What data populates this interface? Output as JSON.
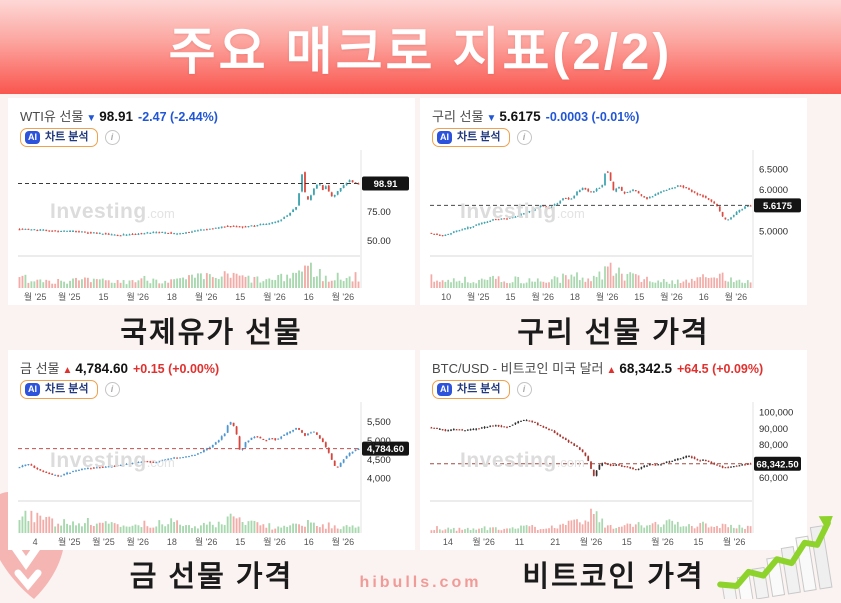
{
  "page": {
    "title": "주요 매크로 지표(2/2)",
    "footer": "hibulls.com"
  },
  "ui": {
    "info_symbol": "i"
  },
  "watermark": {
    "brand": "Investing",
    "suffix": ".com"
  },
  "cards": [
    {
      "key": "wti",
      "name": "WTI유 선물",
      "arrow": "▼",
      "dir": "down",
      "price": "98.91",
      "change": "-2.47 (-2.44%)",
      "ai_badge": "AI",
      "ai_label": "차트 분석",
      "caption": "국제유가 선물"
    },
    {
      "key": "copper",
      "name": "구리 선물",
      "arrow": "▼",
      "dir": "down",
      "price": "5.6175",
      "change": "-0.0003 (-0.01%)",
      "ai_badge": "AI",
      "ai_label": "차트 분석",
      "caption": "구리 선물 가격"
    },
    {
      "key": "gold",
      "name": "금 선물",
      "arrow": "▲",
      "dir": "up",
      "price": "4,784.60",
      "change": "+0.15 (+0.00%)",
      "ai_badge": "AI",
      "ai_label": "차트 분석",
      "caption": "금 선물 가격"
    },
    {
      "key": "btc",
      "name": "BTC/USD - 비트코인 미국 달러",
      "arrow": "▲",
      "dir": "up",
      "price": "68,342.5",
      "change": "+64.5 (+0.09%)",
      "ai_badge": "AI",
      "ai_label": "차트 분석",
      "caption": "비트코인 가격"
    }
  ],
  "chart_data": [
    {
      "type": "candlestick",
      "title": "WTI유 선물",
      "current_price": 98.91,
      "price_label": "98.91",
      "ylim": [
        40,
        126
      ],
      "y_ticks": [
        {
          "v": 75,
          "label": "75.00"
        },
        {
          "v": 50,
          "label": "50.00"
        }
      ],
      "x_labels": [
        "월 '25",
        "월 '25",
        "15",
        "월 '26",
        "18",
        "월 '26",
        "15",
        "월 '26",
        "16",
        "월 '26"
      ],
      "price_path": [
        [
          0,
          60
        ],
        [
          0.06,
          59
        ],
        [
          0.12,
          58
        ],
        [
          0.18,
          57.5
        ],
        [
          0.24,
          56
        ],
        [
          0.3,
          54.5
        ],
        [
          0.36,
          56
        ],
        [
          0.42,
          57
        ],
        [
          0.47,
          55.5
        ],
        [
          0.52,
          58
        ],
        [
          0.57,
          60
        ],
        [
          0.62,
          62.5
        ],
        [
          0.66,
          61.5
        ],
        [
          0.7,
          63
        ],
        [
          0.74,
          64.5
        ],
        [
          0.77,
          67
        ],
        [
          0.8,
          73
        ],
        [
          0.82,
          79
        ],
        [
          0.833,
          97
        ],
        [
          0.84,
          113
        ],
        [
          0.847,
          88
        ],
        [
          0.858,
          84
        ],
        [
          0.868,
          92
        ],
        [
          0.878,
          97
        ],
        [
          0.888,
          99
        ],
        [
          0.898,
          93
        ],
        [
          0.908,
          97
        ],
        [
          0.918,
          91
        ],
        [
          0.928,
          87
        ],
        [
          0.94,
          92
        ],
        [
          0.952,
          95
        ],
        [
          0.964,
          98
        ],
        [
          0.976,
          102
        ],
        [
          0.988,
          100
        ],
        [
          1,
          98.9
        ]
      ],
      "volume_path": [
        [
          0,
          0.5
        ],
        [
          0.1,
          0.4
        ],
        [
          0.2,
          0.35
        ],
        [
          0.3,
          0.3
        ],
        [
          0.38,
          0.45
        ],
        [
          0.46,
          0.35
        ],
        [
          0.52,
          0.5
        ],
        [
          0.58,
          0.55
        ],
        [
          0.63,
          0.6
        ],
        [
          0.68,
          0.45
        ],
        [
          0.73,
          0.35
        ],
        [
          0.78,
          0.5
        ],
        [
          0.82,
          0.8
        ],
        [
          0.85,
          1.0
        ],
        [
          0.875,
          0.85
        ],
        [
          0.9,
          0.5
        ],
        [
          0.92,
          0.3
        ],
        [
          0.94,
          0.6
        ],
        [
          0.96,
          0.5
        ],
        [
          1,
          0.55
        ]
      ],
      "colors": {
        "up": "#3da3ae",
        "down": "#dc4b41",
        "vol_up": "#a7d8ae",
        "vol_down": "#f2aba6",
        "dash": "#3a3a3a"
      },
      "seed": 7
    },
    {
      "type": "candlestick",
      "title": "구리 선물",
      "current_price": 5.6175,
      "price_label": "5.6175",
      "ylim": [
        4.49,
        6.91
      ],
      "y_ticks": [
        {
          "v": 6.5,
          "label": "6.5000"
        },
        {
          "v": 6.0,
          "label": "6.0000"
        },
        {
          "v": 5.0,
          "label": "5.0000"
        }
      ],
      "x_labels": [
        "10",
        "월 '25",
        "15",
        "월 '26",
        "18",
        "월 '26",
        "15",
        "월 '26",
        "16",
        "월 '26"
      ],
      "price_path": [
        [
          0,
          4.95
        ],
        [
          0.04,
          4.88
        ],
        [
          0.08,
          5.0
        ],
        [
          0.12,
          5.08
        ],
        [
          0.16,
          5.18
        ],
        [
          0.2,
          5.28
        ],
        [
          0.24,
          5.3
        ],
        [
          0.28,
          5.38
        ],
        [
          0.32,
          5.5
        ],
        [
          0.35,
          5.62
        ],
        [
          0.37,
          5.55
        ],
        [
          0.4,
          5.68
        ],
        [
          0.42,
          5.82
        ],
        [
          0.44,
          5.75
        ],
        [
          0.46,
          5.95
        ],
        [
          0.48,
          6.05
        ],
        [
          0.5,
          5.92
        ],
        [
          0.52,
          6.0
        ],
        [
          0.54,
          6.1
        ],
        [
          0.552,
          6.55
        ],
        [
          0.562,
          6.3
        ],
        [
          0.575,
          5.95
        ],
        [
          0.59,
          6.1
        ],
        [
          0.605,
          5.9
        ],
        [
          0.62,
          5.95
        ],
        [
          0.64,
          6.0
        ],
        [
          0.66,
          5.85
        ],
        [
          0.68,
          5.78
        ],
        [
          0.7,
          5.85
        ],
        [
          0.72,
          5.95
        ],
        [
          0.74,
          6.0
        ],
        [
          0.76,
          6.05
        ],
        [
          0.78,
          6.1
        ],
        [
          0.8,
          6.05
        ],
        [
          0.82,
          5.95
        ],
        [
          0.84,
          5.88
        ],
        [
          0.86,
          5.82
        ],
        [
          0.88,
          5.72
        ],
        [
          0.9,
          5.6
        ],
        [
          0.915,
          5.35
        ],
        [
          0.93,
          5.25
        ],
        [
          0.945,
          5.35
        ],
        [
          0.96,
          5.45
        ],
        [
          0.98,
          5.55
        ],
        [
          1,
          5.62
        ]
      ],
      "volume_path": [
        [
          0,
          0.5
        ],
        [
          0.08,
          0.35
        ],
        [
          0.15,
          0.45
        ],
        [
          0.25,
          0.4
        ],
        [
          0.35,
          0.35
        ],
        [
          0.42,
          0.5
        ],
        [
          0.47,
          0.55
        ],
        [
          0.52,
          0.5
        ],
        [
          0.555,
          1.0
        ],
        [
          0.58,
          0.8
        ],
        [
          0.62,
          0.55
        ],
        [
          0.68,
          0.45
        ],
        [
          0.73,
          0.3
        ],
        [
          0.78,
          0.35
        ],
        [
          0.83,
          0.45
        ],
        [
          0.88,
          0.5
        ],
        [
          0.92,
          0.6
        ],
        [
          0.95,
          0.45
        ],
        [
          1,
          0.35
        ]
      ],
      "colors": {
        "up": "#3da3ae",
        "down": "#dc4b41",
        "vol_up": "#a7d8ae",
        "vol_down": "#f2aba6",
        "dash": "#4a4a4a"
      },
      "seed": 13
    },
    {
      "type": "candlestick",
      "title": "금 선물",
      "current_price": 4784.6,
      "price_label": "4,784.60",
      "ylim": [
        3500,
        5970
      ],
      "y_ticks": [
        {
          "v": 5500,
          "label": "5,500"
        },
        {
          "v": 5000,
          "label": "5,000"
        },
        {
          "v": 4500,
          "label": "4,500"
        },
        {
          "v": 4000,
          "label": "4,000"
        }
      ],
      "x_labels": [
        "4",
        "월 '25",
        "월 '25",
        "월 '26",
        "18",
        "월 '26",
        "15",
        "월 '26",
        "16",
        "월 '26"
      ],
      "price_path": [
        [
          0,
          4280
        ],
        [
          0.03,
          4380
        ],
        [
          0.06,
          4220
        ],
        [
          0.09,
          4120
        ],
        [
          0.12,
          4060
        ],
        [
          0.15,
          4150
        ],
        [
          0.18,
          4230
        ],
        [
          0.22,
          4280
        ],
        [
          0.26,
          4300
        ],
        [
          0.3,
          4350
        ],
        [
          0.34,
          4400
        ],
        [
          0.37,
          4450
        ],
        [
          0.4,
          4420
        ],
        [
          0.43,
          4480
        ],
        [
          0.46,
          4540
        ],
        [
          0.49,
          4560
        ],
        [
          0.52,
          4620
        ],
        [
          0.55,
          4750
        ],
        [
          0.57,
          4850
        ],
        [
          0.59,
          5000
        ],
        [
          0.61,
          5200
        ],
        [
          0.623,
          5520
        ],
        [
          0.632,
          5450
        ],
        [
          0.642,
          5300
        ],
        [
          0.65,
          4800
        ],
        [
          0.658,
          4720
        ],
        [
          0.67,
          4950
        ],
        [
          0.685,
          5050
        ],
        [
          0.7,
          5120
        ],
        [
          0.715,
          5050
        ],
        [
          0.73,
          5000
        ],
        [
          0.745,
          5080
        ],
        [
          0.76,
          5020
        ],
        [
          0.775,
          5100
        ],
        [
          0.79,
          5180
        ],
        [
          0.805,
          5250
        ],
        [
          0.82,
          5320
        ],
        [
          0.832,
          5260
        ],
        [
          0.845,
          5120
        ],
        [
          0.858,
          5200
        ],
        [
          0.872,
          5240
        ],
        [
          0.885,
          5100
        ],
        [
          0.9,
          4950
        ],
        [
          0.915,
          4700
        ],
        [
          0.928,
          4420
        ],
        [
          0.938,
          4250
        ],
        [
          0.95,
          4400
        ],
        [
          0.965,
          4550
        ],
        [
          0.98,
          4680
        ],
        [
          1,
          4784
        ]
      ],
      "volume_path": [
        [
          0,
          0.6
        ],
        [
          0.03,
          0.9
        ],
        [
          0.06,
          0.75
        ],
        [
          0.1,
          0.55
        ],
        [
          0.15,
          0.5
        ],
        [
          0.2,
          0.55
        ],
        [
          0.25,
          0.4
        ],
        [
          0.3,
          0.45
        ],
        [
          0.35,
          0.4
        ],
        [
          0.4,
          0.45
        ],
        [
          0.45,
          0.5
        ],
        [
          0.5,
          0.4
        ],
        [
          0.55,
          0.35
        ],
        [
          0.6,
          0.5
        ],
        [
          0.625,
          0.95
        ],
        [
          0.65,
          0.8
        ],
        [
          0.68,
          0.5
        ],
        [
          0.72,
          0.35
        ],
        [
          0.76,
          0.3
        ],
        [
          0.8,
          0.35
        ],
        [
          0.84,
          0.45
        ],
        [
          0.88,
          0.4
        ],
        [
          0.92,
          0.35
        ],
        [
          0.96,
          0.3
        ],
        [
          1,
          0.35
        ]
      ],
      "colors": {
        "up": "#4e97d1",
        "down": "#d8453c",
        "vol_up": "#a7d8ae",
        "vol_down": "#f2aba6",
        "dash": "#c0504d"
      },
      "seed": 21
    },
    {
      "type": "candlestick",
      "title": "BTC/USD",
      "current_price": 68342.5,
      "price_label": "68,342.50",
      "ylim": [
        48000,
        104900
      ],
      "y_ticks": [
        {
          "v": 100000,
          "label": "100,000"
        },
        {
          "v": 90000,
          "label": "90,000"
        },
        {
          "v": 80000,
          "label": "80,000"
        },
        {
          "v": 60000,
          "label": "60,000"
        }
      ],
      "x_labels": [
        "14",
        "월 '26",
        "11",
        "21",
        "월 '26",
        "15",
        "월 '26",
        "15",
        "월 '26"
      ],
      "price_path": [
        [
          0,
          90500
        ],
        [
          0.03,
          89500
        ],
        [
          0.05,
          88500
        ],
        [
          0.08,
          89500
        ],
        [
          0.1,
          88800
        ],
        [
          0.13,
          89300
        ],
        [
          0.16,
          90200
        ],
        [
          0.18,
          91000
        ],
        [
          0.2,
          92000
        ],
        [
          0.22,
          91200
        ],
        [
          0.24,
          90800
        ],
        [
          0.26,
          92500
        ],
        [
          0.28,
          94500
        ],
        [
          0.3,
          95200
        ],
        [
          0.32,
          94000
        ],
        [
          0.34,
          91800
        ],
        [
          0.36,
          90300
        ],
        [
          0.38,
          88500
        ],
        [
          0.4,
          86000
        ],
        [
          0.42,
          83500
        ],
        [
          0.44,
          81000
        ],
        [
          0.46,
          78500
        ],
        [
          0.475,
          76000
        ],
        [
          0.49,
          72500
        ],
        [
          0.5,
          68000
        ],
        [
          0.508,
          62500
        ],
        [
          0.515,
          60500
        ],
        [
          0.525,
          66500
        ],
        [
          0.54,
          68800
        ],
        [
          0.555,
          68200
        ],
        [
          0.57,
          67200
        ],
        [
          0.585,
          67800
        ],
        [
          0.6,
          66800
        ],
        [
          0.615,
          66200
        ],
        [
          0.63,
          65400
        ],
        [
          0.645,
          64800
        ],
        [
          0.66,
          66000
        ],
        [
          0.675,
          67200
        ],
        [
          0.69,
          68300
        ],
        [
          0.705,
          67400
        ],
        [
          0.72,
          67900
        ],
        [
          0.735,
          69000
        ],
        [
          0.75,
          69800
        ],
        [
          0.765,
          70500
        ],
        [
          0.78,
          71500
        ],
        [
          0.795,
          72500
        ],
        [
          0.81,
          73200
        ],
        [
          0.825,
          71500
        ],
        [
          0.84,
          70200
        ],
        [
          0.855,
          70800
        ],
        [
          0.87,
          69600
        ],
        [
          0.885,
          68300
        ],
        [
          0.9,
          67200
        ],
        [
          0.915,
          66300
        ],
        [
          0.93,
          65800
        ],
        [
          0.945,
          66500
        ],
        [
          0.96,
          67200
        ],
        [
          0.98,
          67800
        ],
        [
          1,
          68342
        ]
      ],
      "volume_path": [
        [
          0,
          0.25
        ],
        [
          0.05,
          0.2
        ],
        [
          0.1,
          0.18
        ],
        [
          0.15,
          0.22
        ],
        [
          0.2,
          0.25
        ],
        [
          0.25,
          0.22
        ],
        [
          0.3,
          0.28
        ],
        [
          0.35,
          0.25
        ],
        [
          0.4,
          0.3
        ],
        [
          0.44,
          0.45
        ],
        [
          0.47,
          0.55
        ],
        [
          0.5,
          1.0
        ],
        [
          0.51,
          0.9
        ],
        [
          0.53,
          0.6
        ],
        [
          0.56,
          0.4
        ],
        [
          0.6,
          0.3
        ],
        [
          0.64,
          0.35
        ],
        [
          0.68,
          0.45
        ],
        [
          0.72,
          0.4
        ],
        [
          0.76,
          0.5
        ],
        [
          0.8,
          0.45
        ],
        [
          0.84,
          0.4
        ],
        [
          0.88,
          0.45
        ],
        [
          0.92,
          0.35
        ],
        [
          0.96,
          0.3
        ],
        [
          1,
          0.28
        ]
      ],
      "colors": {
        "up": "#2f2f2f",
        "down": "#a8352e",
        "vol_up": "#a7d8ae",
        "vol_down": "#f2aba6",
        "dash": "#a04a42"
      },
      "seed": 33
    }
  ],
  "colors": {
    "pos_text": "#e0312e",
    "neg_text": "#2156d6",
    "banner_top": "#fdd8d6",
    "banner_bottom": "#f9564e",
    "card_bg": "#ffffff",
    "page_bg": "#fbf3f1"
  }
}
